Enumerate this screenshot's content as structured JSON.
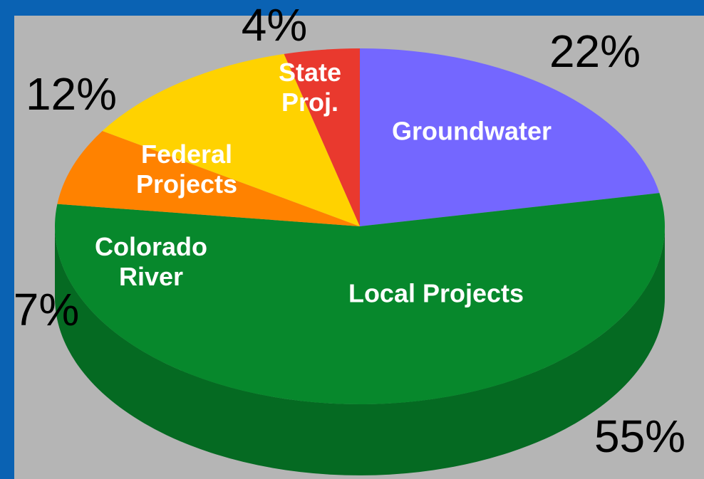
{
  "chart_data": {
    "type": "pie",
    "categories": [
      "Groundwater",
      "Local Projects",
      "Colorado River",
      "Federal Projects",
      "State Proj."
    ],
    "values": [
      22,
      55,
      7,
      12,
      4
    ],
    "value_labels": [
      "22%",
      "55%",
      "7%",
      "12%",
      "4%"
    ],
    "colors": [
      "#7467ff",
      "#07882c",
      "#ff8200",
      "#ffd200",
      "#e9392e"
    ],
    "start_angle": 90,
    "direction": "clockwise"
  }
}
